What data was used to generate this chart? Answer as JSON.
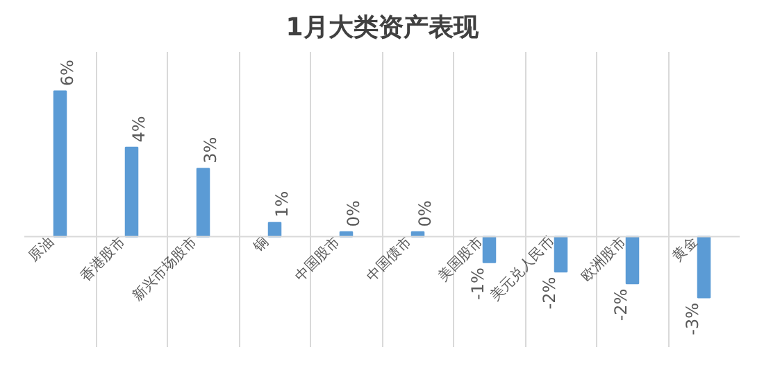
{
  "chart_data": {
    "type": "bar",
    "title": "1月大类资产表现",
    "categories": [
      "原油",
      "香港股市",
      "新兴市场股市",
      "铜",
      "中国股市",
      "中国债市",
      "美国股市",
      "美元兑人民币",
      "欧洲股市",
      "黄金"
    ],
    "values": [
      6.2,
      3.8,
      2.9,
      0.6,
      0.2,
      0.2,
      -1.1,
      -1.5,
      -2.0,
      -2.6
    ],
    "value_labels": [
      "6%",
      "4%",
      "3%",
      "1%",
      "0%",
      "0%",
      "-1%",
      "-2%",
      "-2%",
      "-3%"
    ],
    "color": "#5b9bd5",
    "grid": "x"
  }
}
